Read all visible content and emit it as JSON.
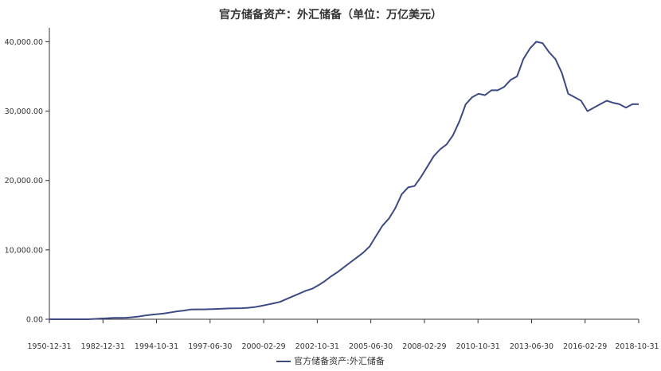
{
  "chart_data": {
    "type": "line",
    "title": "官方储备资产：外汇储备（单位：万亿美元）",
    "xlabel": "",
    "ylabel": "",
    "ylim": [
      0,
      42000
    ],
    "y_ticks": [
      "0.00",
      "10,000.00",
      "20,000.00",
      "30,000.00",
      "40,000.00"
    ],
    "y_tick_values": [
      0,
      10000,
      20000,
      30000,
      40000
    ],
    "x_ticks": [
      "1950-12-31",
      "1982-12-31",
      "1994-10-31",
      "1997-06-30",
      "2000-02-29",
      "2002-10-31",
      "2005-06-30",
      "2008-02-29",
      "2010-10-31",
      "2013-06-30",
      "2016-02-29",
      "2018-10-31"
    ],
    "grid": false,
    "legend_position": "bottom",
    "color": "#3d4a84",
    "series": [
      {
        "name": "官方储备资产:外汇储备",
        "values": [
          0,
          0,
          0,
          0,
          0,
          0,
          0,
          50,
          100,
          150,
          200,
          210,
          220,
          300,
          400,
          550,
          650,
          750,
          850,
          1000,
          1150,
          1250,
          1400,
          1420,
          1420,
          1450,
          1480,
          1520,
          1560,
          1580,
          1600,
          1650,
          1750,
          1900,
          2100,
          2300,
          2500,
          2900,
          3300,
          3700,
          4100,
          4400,
          4900,
          5500,
          6200,
          6800,
          7500,
          8200,
          8900,
          9600,
          10500,
          12000,
          13500,
          14500,
          16000,
          18000,
          19000,
          19200,
          20500,
          22000,
          23500,
          24500,
          25200,
          26500,
          28500,
          31000,
          32000,
          32500,
          32300,
          33000,
          33000,
          33500,
          34500,
          35000,
          37500,
          39000,
          40000,
          39800,
          38500,
          37500,
          35500,
          32500,
          32000,
          31500,
          30000,
          30500,
          31000,
          31500,
          31200,
          31000,
          30500,
          31000,
          31000
        ]
      }
    ]
  }
}
